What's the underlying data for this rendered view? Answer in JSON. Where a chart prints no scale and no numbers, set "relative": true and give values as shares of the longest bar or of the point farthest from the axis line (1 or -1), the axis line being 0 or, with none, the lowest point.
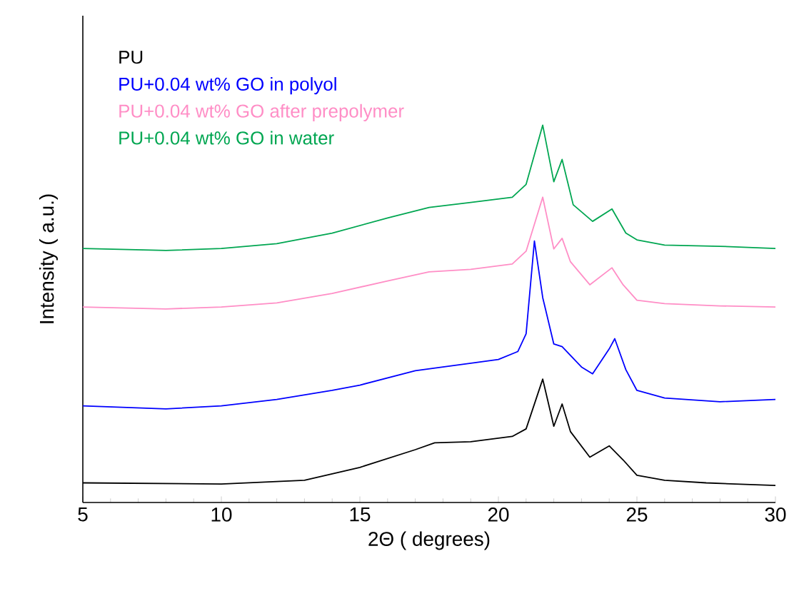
{
  "chart_data": {
    "type": "line",
    "relative": true,
    "xlabel": "2Θ ( degrees)",
    "ylabel": "Intensity ( a.u.)",
    "xlim": [
      5,
      30
    ],
    "xticks": [
      5,
      10,
      15,
      20,
      25,
      30
    ],
    "legend": "top left",
    "line_style": "solid",
    "series": [
      {
        "name": "PU",
        "color": "#000000",
        "x": [
          5,
          10,
          13,
          15,
          17,
          17.7,
          19,
          20.5,
          21,
          21.6,
          22,
          22.3,
          22.6,
          23.3,
          24,
          24.5,
          25,
          26,
          27.5,
          30
        ],
        "values": [
          0.052,
          0.049,
          0.059,
          0.093,
          0.14,
          0.158,
          0.161,
          0.175,
          0.195,
          0.327,
          0.202,
          0.261,
          0.188,
          0.12,
          0.15,
          0.113,
          0.072,
          0.059,
          0.052,
          0.045
        ]
      },
      {
        "name": "PU+0.04 wt% GO in polyol",
        "color": "#0000ff",
        "x": [
          5,
          8,
          10,
          12,
          14,
          15,
          17,
          18,
          20,
          20.7,
          21,
          21.3,
          21.6,
          22,
          22.3,
          23,
          23.4,
          24,
          24.2,
          24.6,
          25,
          26,
          28,
          30
        ],
        "values": [
          0.256,
          0.248,
          0.256,
          0.273,
          0.297,
          0.311,
          0.349,
          0.359,
          0.379,
          0.4,
          0.447,
          0.693,
          0.543,
          0.42,
          0.413,
          0.359,
          0.341,
          0.407,
          0.434,
          0.352,
          0.297,
          0.277,
          0.267,
          0.273
        ]
      },
      {
        "name": "PU+0.04 wt% GO after prepolymer",
        "color": "#ff8ec6",
        "x": [
          5,
          8,
          10,
          12,
          14,
          16,
          17.5,
          19,
          20.5,
          21,
          21.6,
          22,
          22.3,
          22.6,
          23.3,
          24.1,
          24.5,
          25,
          26,
          28,
          30
        ],
        "values": [
          0.518,
          0.513,
          0.518,
          0.529,
          0.554,
          0.587,
          0.611,
          0.618,
          0.632,
          0.666,
          0.809,
          0.672,
          0.7,
          0.638,
          0.577,
          0.622,
          0.577,
          0.536,
          0.527,
          0.521,
          0.518
        ]
      },
      {
        "name": "PU+0.04 wt% GO in water",
        "color": "#00a651",
        "x": [
          5,
          8,
          10,
          12,
          14,
          16,
          17.5,
          19,
          20.5,
          21,
          21.6,
          22,
          22.3,
          22.7,
          23.4,
          24.1,
          24.6,
          25,
          26,
          28,
          30
        ],
        "values": [
          0.673,
          0.668,
          0.673,
          0.686,
          0.714,
          0.754,
          0.782,
          0.795,
          0.809,
          0.843,
          1,
          0.85,
          0.909,
          0.789,
          0.745,
          0.778,
          0.714,
          0.696,
          0.682,
          0.679,
          0.673
        ]
      }
    ]
  }
}
